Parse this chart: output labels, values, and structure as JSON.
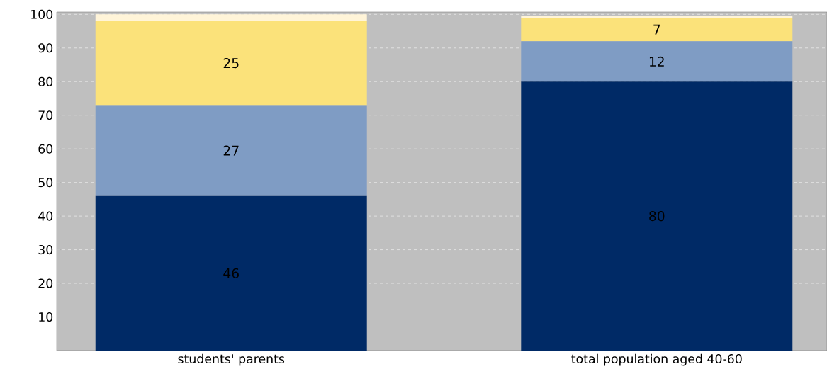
{
  "chart_data": {
    "type": "bar",
    "stacked": true,
    "categories": [
      "students' parents",
      "total population aged 40-60"
    ],
    "series": [
      {
        "color": "#002a66",
        "values": [
          46,
          80
        ],
        "value_labels": [
          "46",
          "80"
        ]
      },
      {
        "color": "#7f9cc4",
        "values": [
          27,
          12
        ],
        "value_labels": [
          "27",
          "12"
        ]
      },
      {
        "color": "#fbe27a",
        "values": [
          25,
          7
        ],
        "value_labels": [
          "25",
          "7"
        ]
      },
      {
        "color": "#fff4d8",
        "values": [
          2,
          0.5
        ],
        "value_labels": [
          null,
          null
        ]
      }
    ],
    "ylim": [
      0,
      100.7
    ],
    "yticks": [
      10,
      20,
      30,
      40,
      50,
      60,
      70,
      80,
      90,
      100
    ],
    "grid": "y"
  }
}
